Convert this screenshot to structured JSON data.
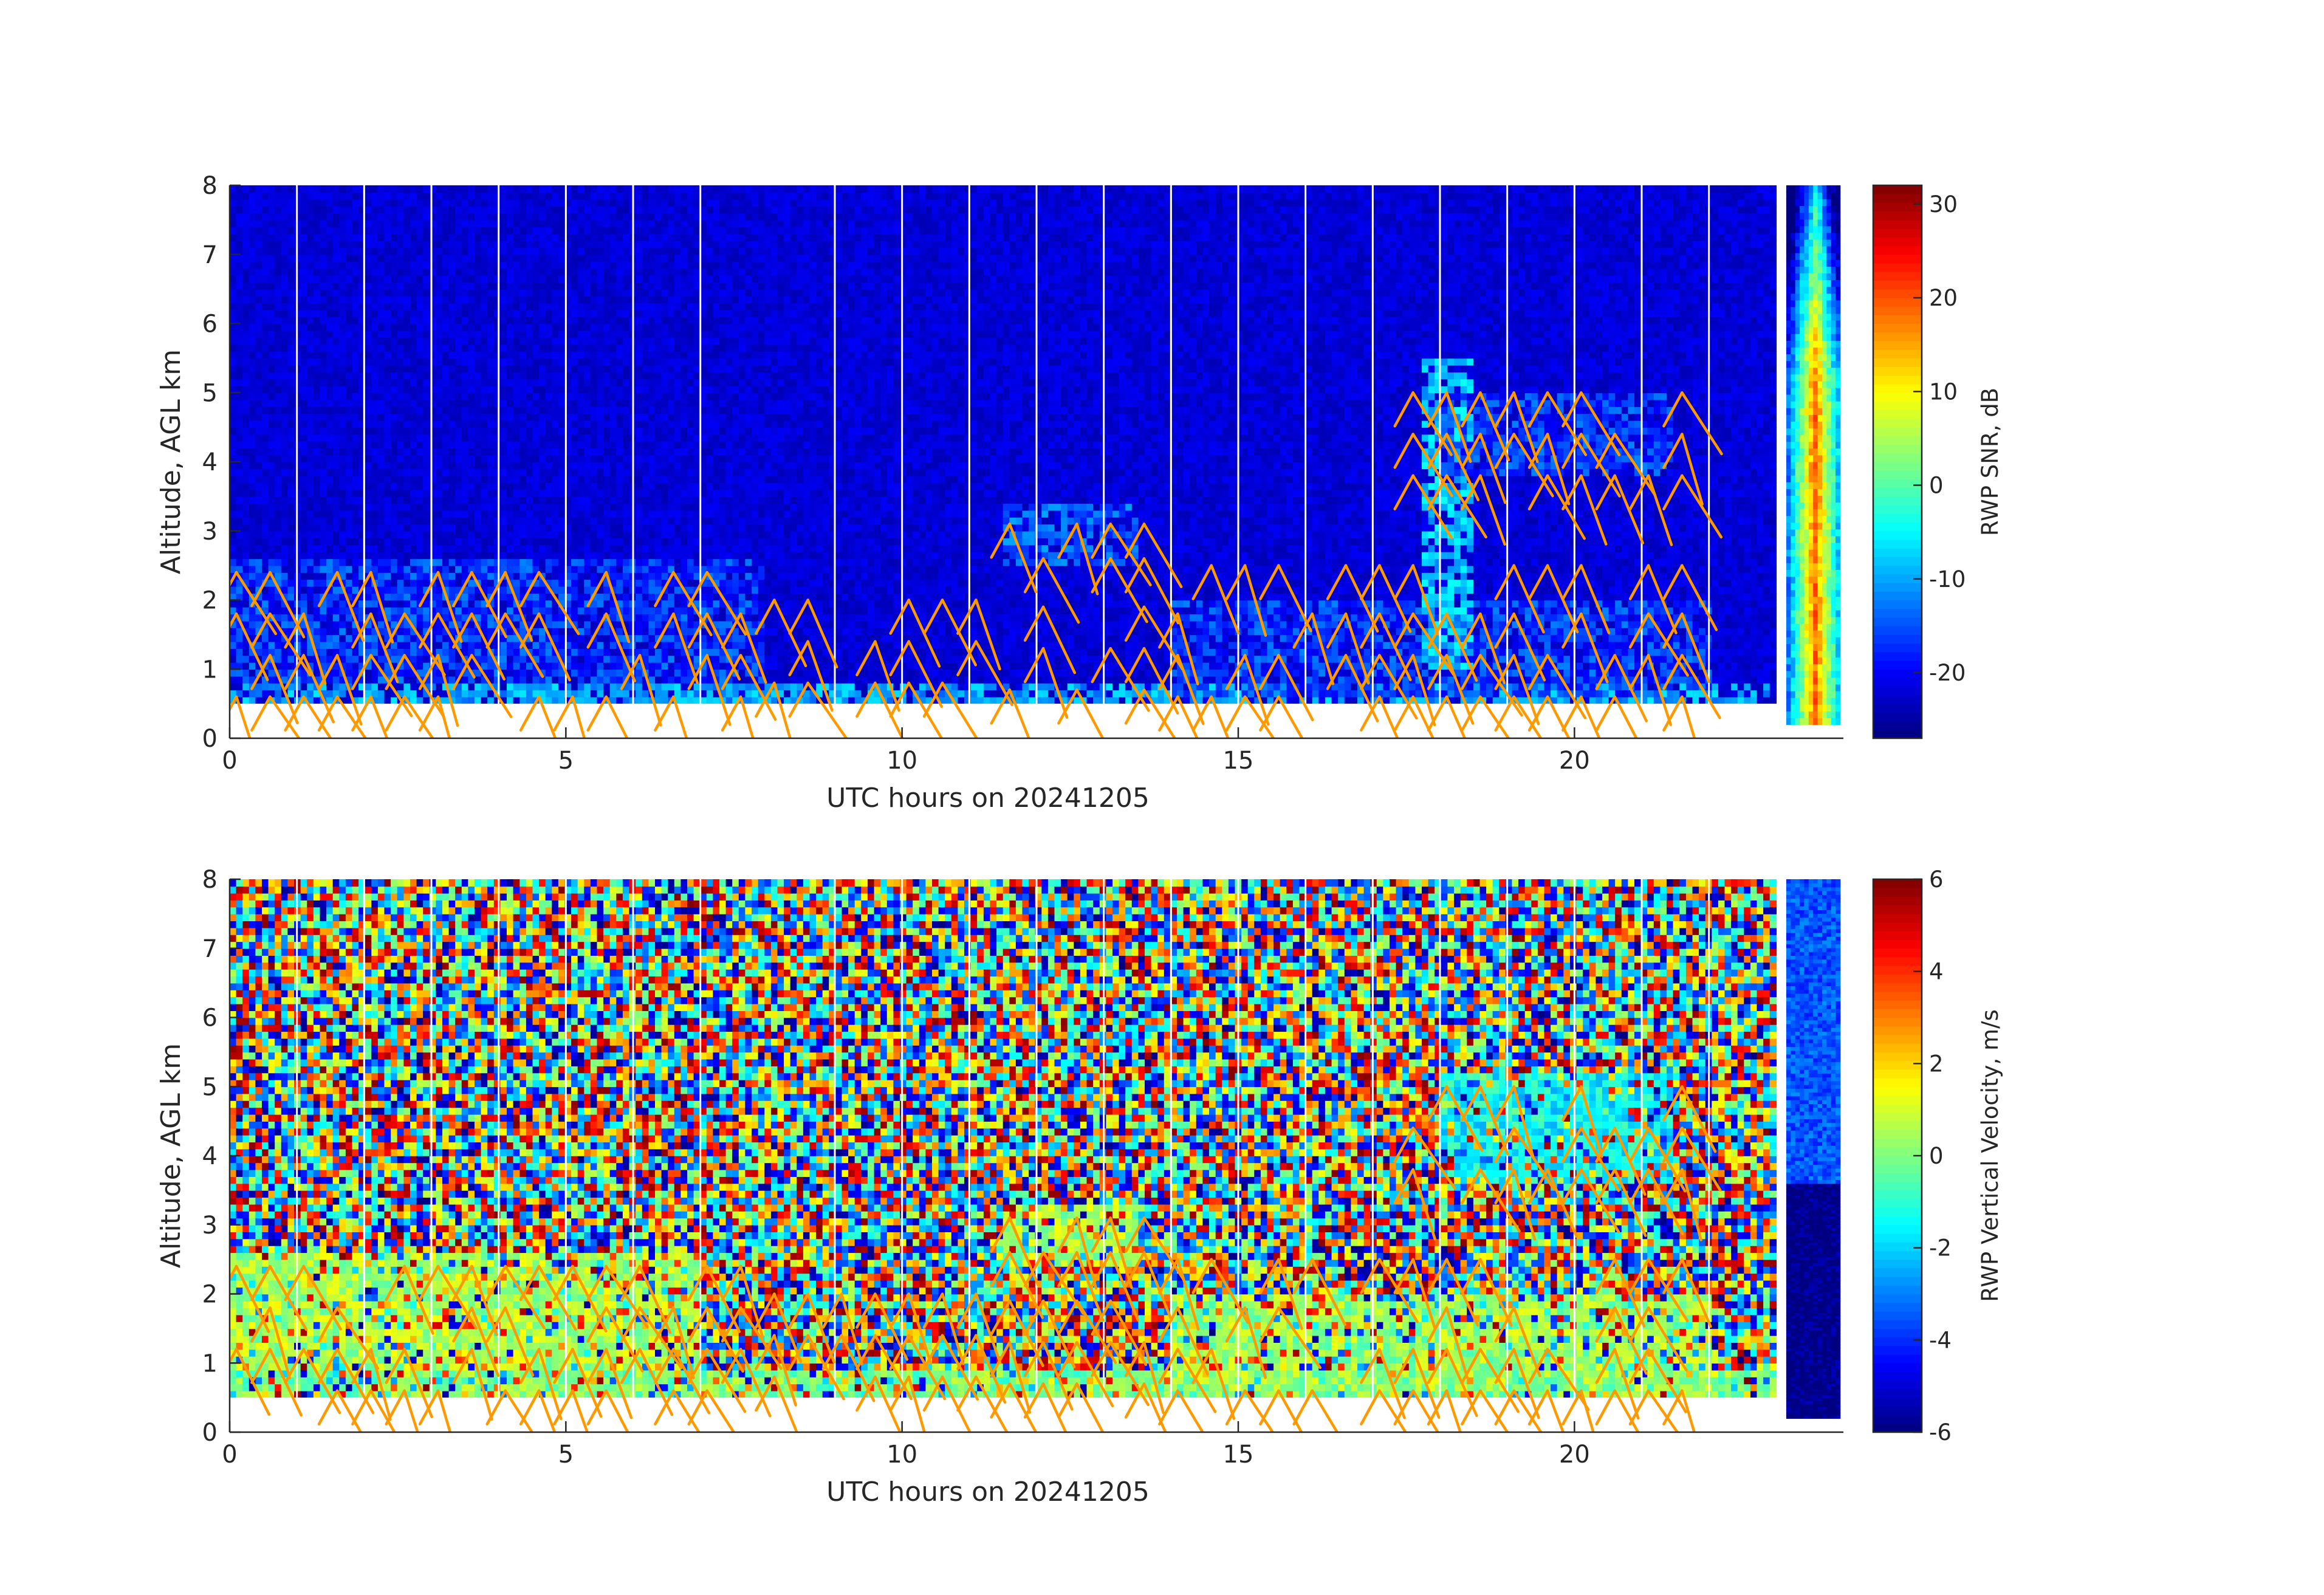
{
  "figure": {
    "background": "#ffffff"
  },
  "chart_data": [
    {
      "type": "heatmap",
      "xlabel": "UTC hours on 20241205",
      "ylabel": "Altitude, AGL km",
      "xlim": [
        0,
        24
      ],
      "ylim": [
        0,
        8
      ],
      "xticks": [
        0,
        5,
        10,
        15,
        20
      ],
      "yticks": [
        0,
        1,
        2,
        3,
        4,
        5,
        6,
        7,
        8
      ],
      "colorbar": {
        "label": "RWP SNR, dB",
        "ticks": [
          30,
          20,
          10,
          0,
          -10,
          -20
        ],
        "range": [
          -27,
          32
        ],
        "colormap": "jet"
      },
      "data_extent": {
        "x": [
          0,
          24
        ],
        "y": [
          0.5,
          8
        ]
      },
      "gap_lines_hours": [
        1,
        2,
        3,
        4,
        5,
        6,
        7,
        9,
        10,
        11,
        12,
        13,
        14,
        15,
        16,
        17,
        18,
        19,
        20,
        21,
        22
      ],
      "features": [
        {
          "x": [
            0,
            23
          ],
          "y": [
            0.5,
            0.8
          ],
          "value": -10
        },
        {
          "x": [
            0,
            8
          ],
          "y": [
            0.8,
            2.6
          ],
          "value": -16
        },
        {
          "x": [
            11.5,
            13.5
          ],
          "y": [
            2.5,
            3.4
          ],
          "value": -14
        },
        {
          "x": [
            14,
            22
          ],
          "y": [
            0.6,
            2.0
          ],
          "value": -16
        },
        {
          "x": [
            17.7,
            18.5
          ],
          "y": [
            1.0,
            5.5
          ],
          "value": -8
        },
        {
          "x": [
            18,
            21.5
          ],
          "y": [
            3.8,
            5.0
          ],
          "value": -16
        },
        {
          "x": [
            23.2,
            23.9
          ],
          "y": [
            0.2,
            8
          ],
          "value": 10
        }
      ],
      "wind_barbs_color": "#ff9900"
    },
    {
      "type": "heatmap",
      "xlabel": "UTC hours on 20241205",
      "ylabel": "Altitude, AGL km",
      "xlim": [
        0,
        24
      ],
      "ylim": [
        0,
        8
      ],
      "xticks": [
        0,
        5,
        10,
        15,
        20
      ],
      "yticks": [
        0,
        1,
        2,
        3,
        4,
        5,
        6,
        7,
        8
      ],
      "colorbar": {
        "label": "RWP Vertical Velocity, m/s",
        "ticks": [
          6,
          4,
          2,
          0,
          -2,
          -4,
          -6
        ],
        "range": [
          -6,
          6
        ],
        "colormap": "jet"
      },
      "data_extent": {
        "x": [
          0,
          24
        ],
        "y": [
          0.5,
          8
        ]
      },
      "gap_lines_hours": [
        1,
        2,
        3,
        4,
        5,
        6,
        7,
        9,
        10,
        11,
        12,
        13,
        14,
        15,
        16,
        17,
        18,
        19,
        20,
        21,
        22
      ],
      "features": [
        {
          "x": [
            0,
            23
          ],
          "y": [
            0.5,
            0.9
          ],
          "value": 0
        },
        {
          "x": [
            0,
            7
          ],
          "y": [
            0.9,
            2.6
          ],
          "value": 0.5
        },
        {
          "x": [
            11.5,
            13.5
          ],
          "y": [
            2.4,
            3.3
          ],
          "value": 0.5
        },
        {
          "x": [
            14,
            22
          ],
          "y": [
            0.6,
            2.0
          ],
          "value": 0.3
        },
        {
          "x": [
            18,
            21.5
          ],
          "y": [
            3.6,
            5.2
          ],
          "value": -1.5
        },
        {
          "x": [
            23.2,
            23.9
          ],
          "y": [
            0.2,
            3.6
          ],
          "value": -6
        },
        {
          "x": [
            23.2,
            23.9
          ],
          "y": [
            3.6,
            8
          ],
          "value": -3.5
        }
      ],
      "wind_barbs_color": "#ff9900"
    }
  ]
}
